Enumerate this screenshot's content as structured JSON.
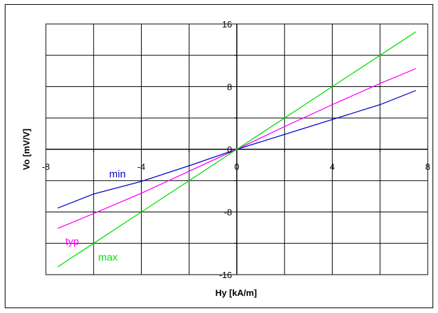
{
  "chart_data": {
    "type": "line",
    "xlabel": "Hy [kA/m]",
    "ylabel": "Vo [mV/V]",
    "xlim": [
      -8,
      8
    ],
    "ylim": [
      -16,
      16
    ],
    "x_ticks": [
      "-8",
      "-4",
      "0",
      "4",
      "8"
    ],
    "y_ticks": [
      "16",
      "8",
      "0",
      "-8",
      "-16"
    ],
    "grid": true,
    "series": [
      {
        "name": "min",
        "color": "#0000cc",
        "x": [
          -7.5,
          -6,
          -4,
          -2,
          0,
          2,
          4,
          6,
          7.5
        ],
        "y": [
          -7.5,
          -5.7,
          -4.1,
          -2.1,
          0,
          1.9,
          3.8,
          5.7,
          7.5
        ]
      },
      {
        "name": "typ",
        "color": "#ff00ff",
        "x": [
          -7.5,
          -6,
          -4,
          -2,
          0,
          2,
          4,
          6,
          7.5
        ],
        "y": [
          -10.1,
          -8.2,
          -5.6,
          -2.8,
          0,
          2.9,
          5.7,
          8.4,
          10.3
        ]
      },
      {
        "name": "max",
        "color": "#00e000",
        "x": [
          -7.5,
          -6,
          -4,
          -2,
          0,
          2,
          4,
          6,
          7.5
        ],
        "y": [
          -15.0,
          -12.0,
          -8.0,
          -4.0,
          0,
          4.0,
          8.0,
          12.0,
          15.0
        ]
      }
    ]
  }
}
